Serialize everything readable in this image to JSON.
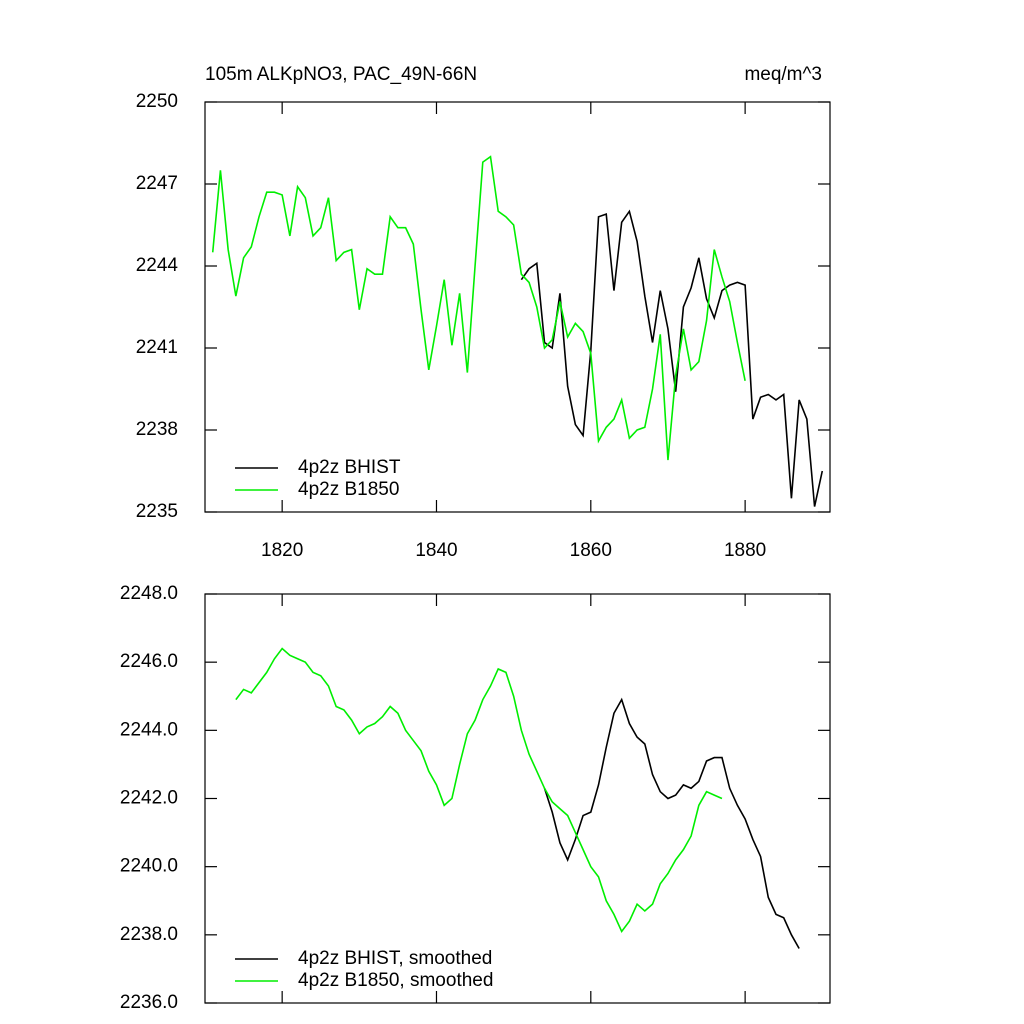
{
  "chart_data": [
    {
      "type": "line",
      "title": "105m ALKpNO3, PAC_49N-66N",
      "units": "meq/m^3",
      "x": [
        1811,
        1812,
        1813,
        1814,
        1815,
        1816,
        1817,
        1818,
        1819,
        1820,
        1821,
        1822,
        1823,
        1824,
        1825,
        1826,
        1827,
        1828,
        1829,
        1830,
        1831,
        1832,
        1833,
        1834,
        1835,
        1836,
        1837,
        1838,
        1839,
        1840,
        1841,
        1842,
        1843,
        1844,
        1845,
        1846,
        1847,
        1848,
        1849,
        1850,
        1851,
        1852,
        1853,
        1854,
        1855,
        1856,
        1857,
        1858,
        1859,
        1860,
        1861,
        1862,
        1863,
        1864,
        1865,
        1866,
        1867,
        1868,
        1869,
        1870,
        1871,
        1872,
        1873,
        1874,
        1875,
        1876,
        1877,
        1878,
        1879,
        1880,
        1881,
        1882,
        1883,
        1884,
        1885,
        1886,
        1887,
        1888,
        1889,
        1890
      ],
      "series": [
        {
          "name": "4p2z BHIST",
          "color": "#000000",
          "values": [
            null,
            null,
            null,
            null,
            null,
            null,
            null,
            null,
            null,
            null,
            null,
            null,
            null,
            null,
            null,
            null,
            null,
            null,
            null,
            null,
            null,
            null,
            null,
            null,
            null,
            null,
            null,
            null,
            null,
            null,
            null,
            null,
            null,
            null,
            null,
            null,
            null,
            null,
            null,
            null,
            2243.5,
            2243.9,
            2244.1,
            2241.2,
            2241.0,
            2243.0,
            2239.6,
            2238.2,
            2237.8,
            2240.9,
            2245.8,
            2245.9,
            2243.1,
            2245.6,
            2246.0,
            2244.9,
            2242.9,
            2241.2,
            2243.1,
            2241.7,
            2239.4,
            2242.5,
            2243.2,
            2244.3,
            2242.8,
            2242.1,
            2243.1,
            2243.3,
            2243.4,
            2243.3,
            2238.4,
            2239.2,
            2239.3,
            2239.1,
            2239.3,
            2235.5,
            2239.1,
            2238.4,
            2235.2,
            2236.5
          ]
        },
        {
          "name": "4p2z B1850",
          "color": "#00ee00",
          "values": [
            2244.5,
            2247.5,
            2244.6,
            2242.9,
            2244.3,
            2244.7,
            2245.8,
            2246.7,
            2246.7,
            2246.6,
            2245.1,
            2246.9,
            2246.5,
            2245.1,
            2245.4,
            2246.5,
            2244.2,
            2244.5,
            2244.6,
            2242.4,
            2243.9,
            2243.7,
            2243.7,
            2245.8,
            2245.4,
            2245.4,
            2244.8,
            2242.4,
            2240.2,
            2241.8,
            2243.5,
            2241.1,
            2243.0,
            2240.1,
            2244.0,
            2247.8,
            2248.0,
            2246.0,
            2245.8,
            2245.5,
            2243.7,
            2243.4,
            2242.5,
            2241.0,
            2241.3,
            2242.7,
            2241.4,
            2241.9,
            2241.6,
            2240.8,
            2237.6,
            2238.1,
            2238.4,
            2239.1,
            2237.7,
            2238.0,
            2238.1,
            2239.5,
            2241.5,
            2236.9,
            2240.0,
            2241.7,
            2240.2,
            2240.5,
            2242.0,
            2244.6,
            2243.6,
            2242.7,
            2241.2,
            2239.8,
            null,
            null,
            null,
            null,
            null,
            null,
            null,
            null,
            null,
            null
          ]
        }
      ],
      "xlim": [
        1810,
        1891
      ],
      "ylim": [
        2235,
        2250
      ],
      "xticks": [
        1820,
        1840,
        1860,
        1880
      ],
      "yticks": [
        2235,
        2238,
        2241,
        2244,
        2247,
        2250
      ],
      "xtick_labels": true,
      "legend": "lower left"
    },
    {
      "type": "line",
      "x": [
        1814,
        1815,
        1816,
        1817,
        1818,
        1819,
        1820,
        1821,
        1822,
        1823,
        1824,
        1825,
        1826,
        1827,
        1828,
        1829,
        1830,
        1831,
        1832,
        1833,
        1834,
        1835,
        1836,
        1837,
        1838,
        1839,
        1840,
        1841,
        1842,
        1843,
        1844,
        1845,
        1846,
        1847,
        1848,
        1849,
        1850,
        1851,
        1852,
        1853,
        1854,
        1855,
        1856,
        1857,
        1858,
        1859,
        1860,
        1861,
        1862,
        1863,
        1864,
        1865,
        1866,
        1867,
        1868,
        1869,
        1870,
        1871,
        1872,
        1873,
        1874,
        1875,
        1876,
        1877,
        1878,
        1879,
        1880,
        1881,
        1882,
        1883,
        1884,
        1885,
        1886,
        1887
      ],
      "series": [
        {
          "name": "4p2z BHIST, smoothed",
          "color": "#000000",
          "values": [
            null,
            null,
            null,
            null,
            null,
            null,
            null,
            null,
            null,
            null,
            null,
            null,
            null,
            null,
            null,
            null,
            null,
            null,
            null,
            null,
            null,
            null,
            null,
            null,
            null,
            null,
            null,
            null,
            null,
            null,
            null,
            null,
            null,
            null,
            null,
            null,
            null,
            null,
            null,
            null,
            2242.3,
            2241.6,
            2240.7,
            2240.2,
            2240.8,
            2241.5,
            2241.6,
            2242.4,
            2243.5,
            2244.5,
            2244.9,
            2244.2,
            2243.8,
            2243.6,
            2242.7,
            2242.2,
            2242.0,
            2242.1,
            2242.4,
            2242.3,
            2242.5,
            2243.1,
            2243.2,
            2243.2,
            2242.3,
            2241.8,
            2241.4,
            2240.8,
            2240.3,
            2239.1,
            2238.6,
            2238.5,
            2238.0,
            2237.6
          ]
        },
        {
          "name": "4p2z B1850, smoothed",
          "color": "#00ee00",
          "values": [
            2244.9,
            2245.2,
            2245.1,
            2245.4,
            2245.7,
            2246.1,
            2246.4,
            2246.2,
            2246.1,
            2246.0,
            2245.7,
            2245.6,
            2245.3,
            2244.7,
            2244.6,
            2244.3,
            2243.9,
            2244.1,
            2244.2,
            2244.4,
            2244.7,
            2244.5,
            2244.0,
            2243.7,
            2243.4,
            2242.8,
            2242.4,
            2241.8,
            2242.0,
            2243.0,
            2243.9,
            2244.3,
            2244.9,
            2245.3,
            2245.8,
            2245.7,
            2245.0,
            2244.0,
            2243.3,
            2242.8,
            2242.3,
            2241.9,
            2241.7,
            2241.5,
            2241.0,
            2240.5,
            2240.0,
            2239.7,
            2239.0,
            2238.6,
            2238.1,
            2238.4,
            2238.9,
            2238.7,
            2238.9,
            2239.5,
            2239.8,
            2240.2,
            2240.5,
            2240.9,
            2241.8,
            2242.2,
            2242.1,
            2242.0,
            null,
            null,
            null,
            null,
            null,
            null,
            null,
            null,
            null,
            null
          ]
        }
      ],
      "xlim": [
        1810,
        1891
      ],
      "ylim": [
        2236,
        2248
      ],
      "xticks": [
        1820,
        1840,
        1860,
        1880
      ],
      "yticks": [
        {
          "value": 2236,
          "label": "2236.0"
        },
        {
          "value": 2238,
          "label": "2238.0"
        },
        {
          "value": 2240,
          "label": "2240.0"
        },
        {
          "value": 2242,
          "label": "2242.0"
        },
        {
          "value": 2244,
          "label": "2244.0"
        },
        {
          "value": 2246,
          "label": "2246.0"
        },
        {
          "value": 2248,
          "label": "2248.0"
        }
      ],
      "xtick_labels": false,
      "legend": "lower left"
    }
  ]
}
